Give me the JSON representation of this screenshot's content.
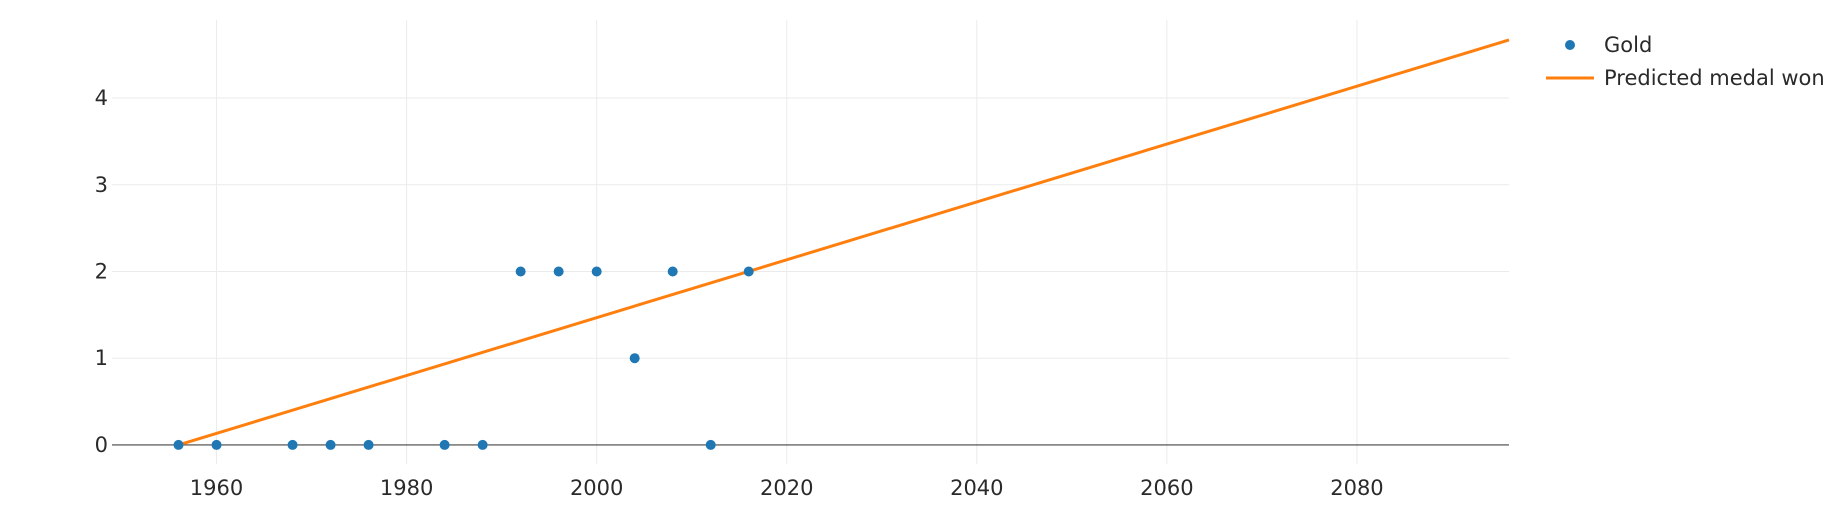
{
  "chart_data": {
    "type": "scatter",
    "title": "",
    "xlabel": "",
    "ylabel": "",
    "xlim": [
      1949,
      2096
    ],
    "ylim": [
      -0.22,
      4.9
    ],
    "x_ticks": [
      1960,
      1980,
      2000,
      2020,
      2040,
      2060,
      2080
    ],
    "y_ticks": [
      0,
      1,
      2,
      3,
      4
    ],
    "grid": true,
    "legend_position": "top-right",
    "series": [
      {
        "name": "Gold",
        "mode": "markers",
        "color": "#1f77b4",
        "x": [
          1956,
          1960,
          1968,
          1972,
          1976,
          1984,
          1988,
          1992,
          1996,
          2000,
          2004,
          2008,
          2012,
          2016
        ],
        "y": [
          0,
          0,
          0,
          0,
          0,
          0,
          0,
          2,
          2,
          2,
          1,
          2,
          0,
          2
        ]
      },
      {
        "name": "Predicted medal won",
        "mode": "line",
        "color": "#ff7f0e",
        "x": [
          1956,
          2096
        ],
        "y": [
          0,
          4.67
        ]
      }
    ]
  }
}
